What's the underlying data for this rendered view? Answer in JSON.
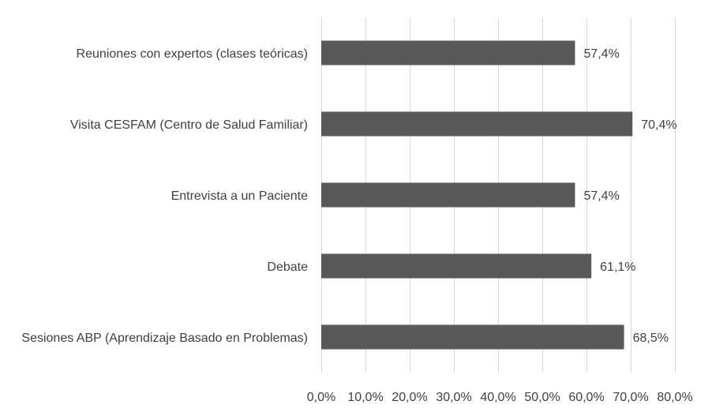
{
  "chart_data": {
    "type": "bar",
    "orientation": "horizontal",
    "title": "",
    "xlabel": "",
    "ylabel": "",
    "categories": [
      "Reuniones con expertos (clases teóricas)",
      "Visita CESFAM (Centro de Salud Familiar)",
      "Entrevista a un Paciente",
      "Debate",
      "Sesiones ABP (Aprendizaje Basado en Problemas)"
    ],
    "values": [
      57.4,
      70.4,
      57.4,
      61.1,
      68.5
    ],
    "value_labels": [
      "57,4%",
      "70,4%",
      "57,4%",
      "61,1%",
      "68,5%"
    ],
    "xlim": [
      0,
      80
    ],
    "ticks": [
      0,
      10,
      20,
      30,
      40,
      50,
      60,
      70,
      80
    ],
    "tick_labels": [
      "0,0%",
      "10,0%",
      "20,0%",
      "30,0%",
      "40,0%",
      "50,0%",
      "60,0%",
      "70,0%",
      "80,0%"
    ],
    "grid": true,
    "legend": "none",
    "bar_color": "#595959"
  }
}
